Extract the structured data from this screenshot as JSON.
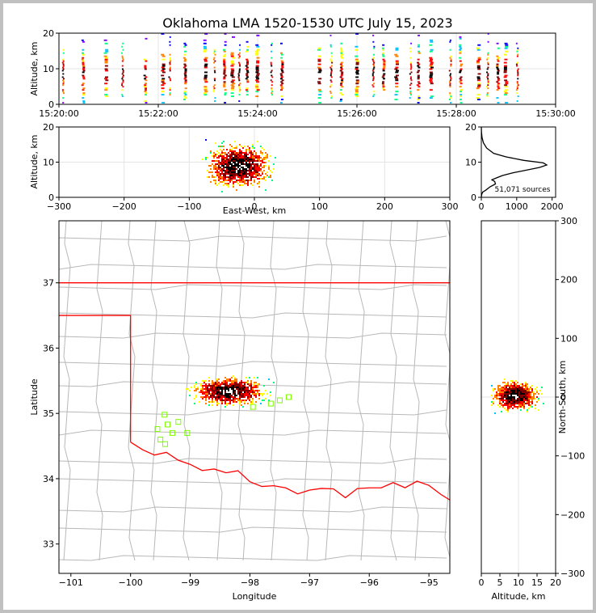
{
  "title": "Oklahoma LMA 1520-1530 UTC July 15, 2023",
  "colors": {
    "frame": "#000000",
    "state_border": "#ff0000",
    "county_lines": "#b8b8b8",
    "station_marker": "#7cfc00",
    "density_scale": [
      "#8000ff",
      "#0000ff",
      "#00c0ff",
      "#00ff80",
      "#ffff00",
      "#ff8000",
      "#ff0000",
      "#800000",
      "#000000",
      "#ffffff"
    ]
  },
  "chart_data": [
    {
      "id": "time_height",
      "type": "heatmap",
      "xlabel": "",
      "ylabel": "Altitude, km",
      "xticks": [
        "15:20:00",
        "15:22:00",
        "15:24:00",
        "15:26:00",
        "15:28:00",
        "15:30:00"
      ],
      "yticks": [
        0,
        10,
        20
      ],
      "xlim_minutes": [
        0,
        10
      ],
      "ylim": [
        0,
        20
      ],
      "grid": true,
      "flash_times_min": [
        0.05,
        0.45,
        0.9,
        1.25,
        1.7,
        2.05,
        2.2,
        2.5,
        2.9,
        3.1,
        3.3,
        3.45,
        3.6,
        3.75,
        3.95,
        4.25,
        4.45,
        5.2,
        5.45,
        5.65,
        5.95,
        6.3,
        6.5,
        6.75,
        7.05,
        7.2,
        7.45,
        7.85,
        8.05,
        8.4,
        8.6,
        8.8,
        8.95,
        9.2
      ]
    },
    {
      "id": "ew_altitude",
      "type": "heatmap",
      "xlabel": "East-West, km",
      "ylabel": "Altitude, km",
      "xticks": [
        -300,
        -200,
        -100,
        0,
        100,
        200,
        300
      ],
      "yticks": [
        0,
        10,
        20
      ],
      "xlim": [
        -300,
        300
      ],
      "ylim": [
        0,
        20
      ],
      "grid": true,
      "core": {
        "x": -25,
        "z": 9,
        "sx": 28,
        "sz": 3.5
      }
    },
    {
      "id": "altitude_histogram",
      "type": "line",
      "xlabel": "",
      "ylabel": "",
      "xticks": [
        0,
        1000,
        2000
      ],
      "yticks": [
        0,
        10,
        20
      ],
      "xlim": [
        0,
        2100
      ],
      "ylim": [
        0,
        20
      ],
      "annotation": "51,071 sources",
      "x": [
        0,
        5,
        15,
        40,
        120,
        250,
        400,
        380,
        300,
        420,
        600,
        900,
        1300,
        1650,
        1850,
        1750,
        1200,
        700,
        350,
        150,
        60,
        20,
        5,
        0
      ],
      "y": [
        0,
        0.5,
        1,
        1.5,
        2,
        3,
        3.8,
        4.5,
        5,
        5.5,
        6.2,
        7,
        7.8,
        8.5,
        9.2,
        9.8,
        10.5,
        11.5,
        12.5,
        14,
        15.5,
        17,
        18.5,
        20
      ]
    },
    {
      "id": "plan_view",
      "type": "heatmap",
      "xlabel": "Longitude",
      "ylabel": "Latitude",
      "xticks": [
        -101,
        -100,
        -99,
        -98,
        -97,
        -96,
        -95
      ],
      "yticks": [
        33,
        34,
        35,
        36,
        37
      ],
      "xlim": [
        -101.2,
        -94.65
      ],
      "ylim": [
        32.55,
        37.95
      ],
      "core": {
        "lon": -98.35,
        "lat": 35.35,
        "slon": 0.35,
        "slat": 0.12
      },
      "stations": [
        [
          -99.43,
          34.98
        ],
        [
          -99.2,
          34.87
        ],
        [
          -99.38,
          34.83
        ],
        [
          -99.55,
          34.76
        ],
        [
          -99.3,
          34.7
        ],
        [
          -99.05,
          34.7
        ],
        [
          -99.5,
          34.6
        ],
        [
          -99.42,
          34.53
        ],
        [
          -97.95,
          35.1
        ],
        [
          -97.65,
          35.15
        ],
        [
          -97.5,
          35.2
        ],
        [
          -97.35,
          35.25
        ]
      ]
    },
    {
      "id": "ns_altitude",
      "type": "heatmap",
      "xlabel": "Altitude, km",
      "ylabel": "North-South, km",
      "xticks": [
        0,
        5,
        10,
        15,
        20
      ],
      "yticks": [
        -300,
        -200,
        -100,
        0,
        100,
        200,
        300
      ],
      "xlim": [
        0,
        20
      ],
      "ylim": [
        -300,
        300
      ],
      "grid": true,
      "core": {
        "z": 9,
        "y": 3,
        "sz": 3.5,
        "sy": 14
      }
    }
  ]
}
